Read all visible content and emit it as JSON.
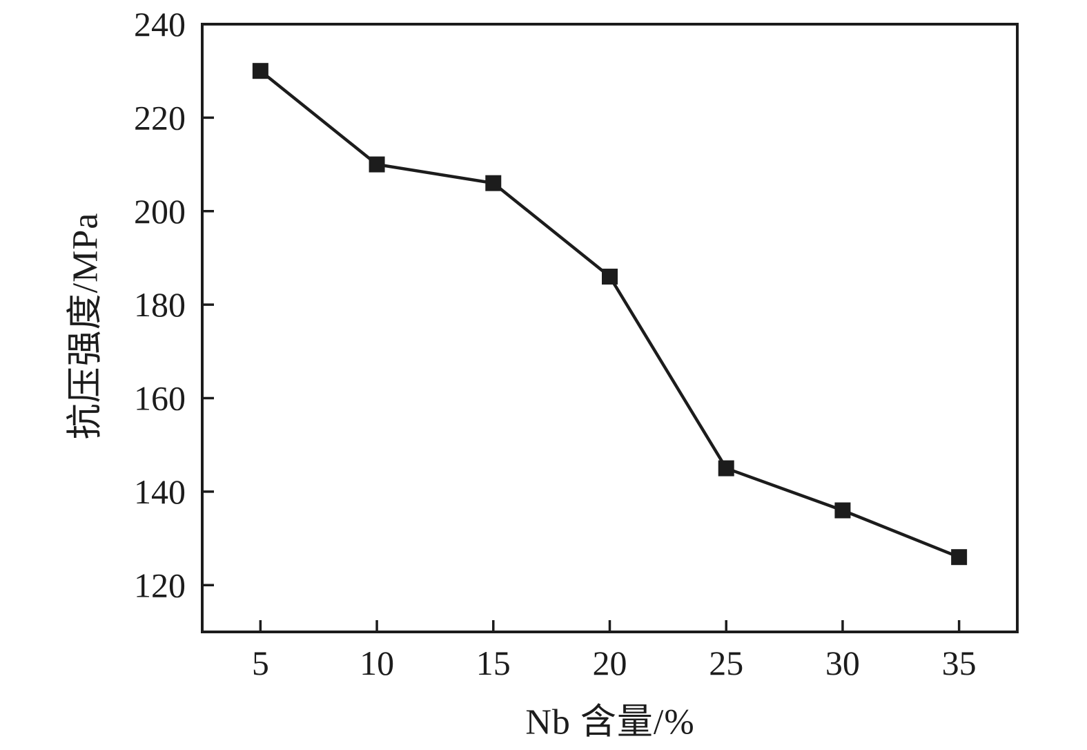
{
  "chart_data": {
    "type": "line",
    "xlabel": "Nb 含量/%",
    "ylabel": "抗压强度/MPa",
    "x": [
      5,
      10,
      15,
      20,
      25,
      30,
      35
    ],
    "series": [
      {
        "name": "compressive-strength",
        "values": [
          230,
          210,
          206,
          186,
          145,
          136,
          126
        ]
      }
    ],
    "xticks": [
      5,
      10,
      15,
      20,
      25,
      30,
      35
    ],
    "yticks": [
      120,
      140,
      160,
      180,
      200,
      220,
      240
    ],
    "xlim": [
      2.5,
      37.5
    ],
    "ylim": [
      110,
      240
    ],
    "grid": false,
    "legend": "none",
    "marker": "square",
    "line_color": "#1c1c1c",
    "marker_color": "#1c1c1c",
    "axis_color": "#1c1c1c",
    "background_color": "#ffffff"
  }
}
